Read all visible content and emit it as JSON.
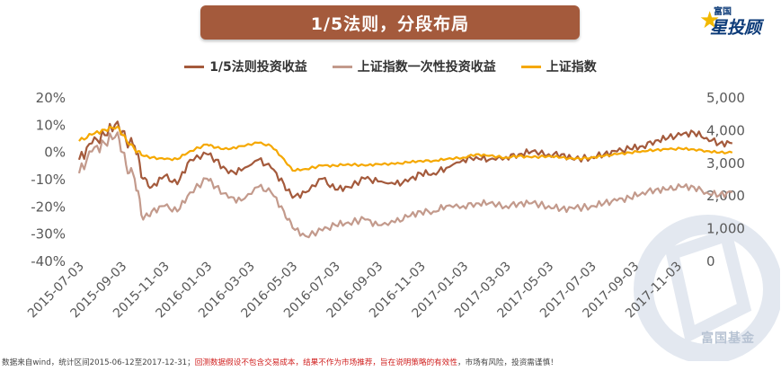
{
  "title": "1/5法则，分段布局",
  "brand": {
    "small": "富国",
    "main": "星投顾",
    "watermark": "富国基金"
  },
  "colors": {
    "rule": "#a45a3c",
    "lump": "#c39a8c",
    "index": "#f5a800",
    "banner": "#a45a3c"
  },
  "footer": {
    "prefix": "数据来自wind，统计区间2015-06-12至2017-12-31；",
    "warning": "回测数据假设不包含交易成本，结果不作为市场推荐，旨在说明策略的有效性",
    "suffix": "，市场有风险，投资需谨慎！"
  },
  "chart_data": {
    "type": "line",
    "x": [
      "2015-07-03",
      "2015-09-03",
      "2015-11-03",
      "2016-01-03",
      "2016-03-03",
      "2016-05-03",
      "2016-07-03",
      "2016-09-03",
      "2016-11-03",
      "2017-01-03",
      "2017-03-03",
      "2017-05-03",
      "2017-07-03",
      "2017-09-03",
      "2017-11-03"
    ],
    "legend": [
      "1/5法则投资收益",
      "上证指数一次性投资收益",
      "上证指数"
    ],
    "y_left": {
      "range": [
        -0.4,
        0.2
      ],
      "ticks": [
        "20%",
        "10%",
        "0%",
        "-10%",
        "-20%",
        "-30%",
        "-40%"
      ]
    },
    "y_right": {
      "range": [
        0,
        5000
      ],
      "ticks": [
        "5,000",
        "4,000",
        "3,000",
        "2,000",
        "1,000",
        "0"
      ]
    },
    "series": [
      {
        "name": "1/5法则投资收益",
        "axis": "left",
        "values": [
          [
            0,
            -0.03
          ],
          [
            0.3,
            0.03
          ],
          [
            0.6,
            0.06
          ],
          [
            0.9,
            0.11
          ],
          [
            1.1,
            0.04
          ],
          [
            1.3,
            0.02
          ],
          [
            1.5,
            -0.1
          ],
          [
            1.7,
            -0.13
          ],
          [
            2.0,
            -0.09
          ],
          [
            2.3,
            -0.12
          ],
          [
            2.6,
            -0.03
          ],
          [
            3.0,
            -0.01
          ],
          [
            3.2,
            -0.03
          ],
          [
            3.5,
            -0.08
          ],
          [
            3.8,
            -0.07
          ],
          [
            4.2,
            -0.03
          ],
          [
            4.5,
            -0.06
          ],
          [
            4.8,
            -0.12
          ],
          [
            5.0,
            -0.17
          ],
          [
            5.3,
            -0.15
          ],
          [
            5.7,
            -0.1
          ],
          [
            6.0,
            -0.14
          ],
          [
            6.3,
            -0.13
          ],
          [
            6.7,
            -0.1
          ],
          [
            7.0,
            -0.11
          ],
          [
            7.4,
            -0.12
          ],
          [
            7.7,
            -0.11
          ],
          [
            8.0,
            -0.08
          ],
          [
            8.3,
            -0.08
          ],
          [
            8.6,
            -0.06
          ],
          [
            9.0,
            -0.03
          ],
          [
            9.3,
            -0.02
          ],
          [
            9.6,
            -0.03
          ],
          [
            10.0,
            -0.02
          ],
          [
            10.3,
            -0.01
          ],
          [
            10.6,
            0.0
          ],
          [
            11.0,
            -0.01
          ],
          [
            11.3,
            -0.01
          ],
          [
            11.6,
            -0.03
          ],
          [
            12.0,
            -0.02
          ],
          [
            12.3,
            -0.01
          ],
          [
            12.6,
            0.0
          ],
          [
            12.9,
            0.01
          ],
          [
            13.2,
            0.02
          ],
          [
            13.5,
            0.04
          ],
          [
            13.8,
            0.05
          ],
          [
            14.1,
            0.06
          ],
          [
            14.4,
            0.07
          ],
          [
            14.7,
            0.05
          ],
          [
            15.0,
            0.03
          ],
          [
            15.3,
            0.03
          ]
        ]
      },
      {
        "name": "上证指数一次性投资收益",
        "axis": "left",
        "values": [
          [
            0,
            -0.08
          ],
          [
            0.3,
            0.0
          ],
          [
            0.6,
            0.03
          ],
          [
            0.9,
            0.07
          ],
          [
            1.1,
            -0.05
          ],
          [
            1.3,
            -0.1
          ],
          [
            1.5,
            -0.25
          ],
          [
            1.7,
            -0.22
          ],
          [
            2.0,
            -0.2
          ],
          [
            2.3,
            -0.22
          ],
          [
            2.6,
            -0.15
          ],
          [
            3.0,
            -0.1
          ],
          [
            3.2,
            -0.13
          ],
          [
            3.5,
            -0.17
          ],
          [
            3.8,
            -0.18
          ],
          [
            4.2,
            -0.13
          ],
          [
            4.5,
            -0.15
          ],
          [
            4.8,
            -0.22
          ],
          [
            5.0,
            -0.28
          ],
          [
            5.3,
            -0.31
          ],
          [
            5.7,
            -0.29
          ],
          [
            6.0,
            -0.27
          ],
          [
            6.3,
            -0.26
          ],
          [
            6.7,
            -0.25
          ],
          [
            7.0,
            -0.27
          ],
          [
            7.4,
            -0.26
          ],
          [
            7.7,
            -0.24
          ],
          [
            8.0,
            -0.22
          ],
          [
            8.3,
            -0.22
          ],
          [
            8.6,
            -0.2
          ],
          [
            9.0,
            -0.2
          ],
          [
            9.3,
            -0.19
          ],
          [
            9.6,
            -0.19
          ],
          [
            10.0,
            -0.2
          ],
          [
            10.3,
            -0.19
          ],
          [
            10.6,
            -0.19
          ],
          [
            11.0,
            -0.2
          ],
          [
            11.3,
            -0.21
          ],
          [
            11.6,
            -0.21
          ],
          [
            12.0,
            -0.2
          ],
          [
            12.3,
            -0.19
          ],
          [
            12.6,
            -0.18
          ],
          [
            12.9,
            -0.17
          ],
          [
            13.2,
            -0.15
          ],
          [
            13.5,
            -0.14
          ],
          [
            13.8,
            -0.14
          ],
          [
            14.1,
            -0.13
          ],
          [
            14.4,
            -0.13
          ],
          [
            14.7,
            -0.15
          ],
          [
            15.0,
            -0.16
          ],
          [
            15.3,
            -0.15
          ]
        ]
      },
      {
        "name": "上证指数",
        "axis": "right",
        "values": [
          [
            0,
            3650
          ],
          [
            0.3,
            3850
          ],
          [
            0.6,
            4000
          ],
          [
            0.9,
            4100
          ],
          [
            1.1,
            3700
          ],
          [
            1.3,
            3400
          ],
          [
            1.5,
            3200
          ],
          [
            1.7,
            3150
          ],
          [
            2.0,
            3100
          ],
          [
            2.3,
            3100
          ],
          [
            2.6,
            3350
          ],
          [
            3.0,
            3550
          ],
          [
            3.2,
            3450
          ],
          [
            3.5,
            3400
          ],
          [
            3.8,
            3500
          ],
          [
            4.2,
            3600
          ],
          [
            4.5,
            3500
          ],
          [
            4.8,
            3100
          ],
          [
            5.0,
            2750
          ],
          [
            5.3,
            2800
          ],
          [
            5.7,
            2900
          ],
          [
            6.0,
            2900
          ],
          [
            6.3,
            2950
          ],
          [
            6.7,
            2900
          ],
          [
            7.0,
            2950
          ],
          [
            7.4,
            2950
          ],
          [
            7.7,
            3000
          ],
          [
            8.0,
            3050
          ],
          [
            8.3,
            3050
          ],
          [
            8.6,
            3100
          ],
          [
            9.0,
            3150
          ],
          [
            9.3,
            3250
          ],
          [
            9.6,
            3200
          ],
          [
            10.0,
            3150
          ],
          [
            10.3,
            3200
          ],
          [
            10.6,
            3150
          ],
          [
            11.0,
            3200
          ],
          [
            11.3,
            3150
          ],
          [
            11.6,
            3100
          ],
          [
            12.0,
            3150
          ],
          [
            12.3,
            3200
          ],
          [
            12.6,
            3250
          ],
          [
            12.9,
            3300
          ],
          [
            13.2,
            3350
          ],
          [
            13.5,
            3380
          ],
          [
            13.8,
            3400
          ],
          [
            14.1,
            3420
          ],
          [
            14.4,
            3400
          ],
          [
            14.7,
            3350
          ],
          [
            15.0,
            3300
          ],
          [
            15.3,
            3300
          ]
        ]
      }
    ]
  }
}
